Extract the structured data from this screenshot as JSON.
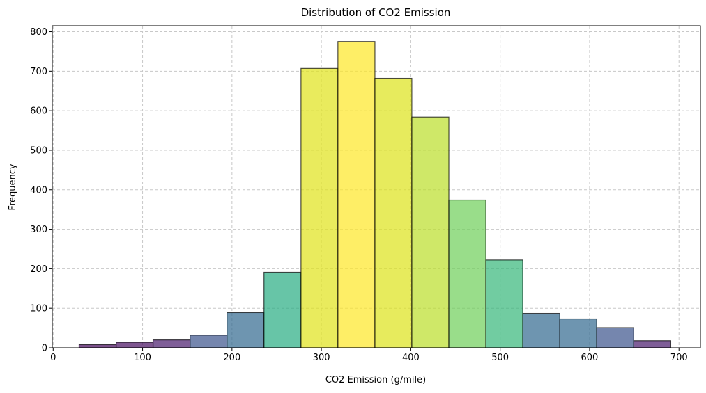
{
  "chart_data": {
    "type": "bar",
    "subtype": "histogram",
    "title": "Distribution of CO2 Emission",
    "xlabel": "CO2 Emission (g/mile)",
    "ylabel": "Frequency",
    "xlim": [
      -1,
      724
    ],
    "ylim": [
      0,
      815
    ],
    "xticks": [
      0,
      100,
      200,
      300,
      400,
      500,
      600,
      700
    ],
    "yticks": [
      0,
      100,
      200,
      300,
      400,
      500,
      600,
      700,
      800
    ],
    "grid": true,
    "grid_style": "dashed",
    "legend": false,
    "colormap": "viridis",
    "bin_edges": [
      29.0,
      70.4,
      111.7,
      153.1,
      194.4,
      235.8,
      277.2,
      318.5,
      359.9,
      401.2,
      442.6,
      484.0,
      525.3,
      566.7,
      608.0,
      649.4,
      690.8
    ],
    "values": [
      8,
      14,
      20,
      32,
      89,
      191,
      707,
      775,
      682,
      584,
      374,
      222,
      87,
      73,
      51,
      18
    ],
    "bar_colors": [
      "#46085c",
      "#470e61",
      "#481a6c",
      "#3b528b",
      "#31688e",
      "#26ad81",
      "#dfe318",
      "#fde725",
      "#dde318",
      "#bade28",
      "#6ece58",
      "#35b779",
      "#31688e",
      "#31688e",
      "#3b528b",
      "#481a6c"
    ],
    "bar_edge_color": "#000000",
    "bar_alpha": 0.7
  }
}
